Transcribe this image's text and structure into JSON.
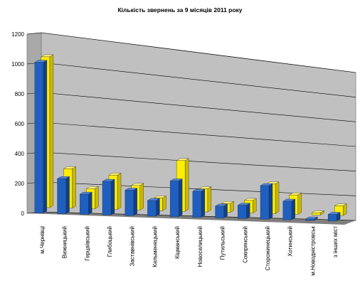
{
  "colors": {
    "plot_wall": "#c0c0c0",
    "floor": "#7f7f7f",
    "gridline": "#000000",
    "series_blue": "#1f5fbf",
    "series_blue_dark": "#0f3f8a",
    "series_blue_light": "#4a86e0",
    "series_yellow": "#ffee00",
    "series_yellow_dark": "#c9b800",
    "series_yellow_light": "#fff27a"
  },
  "chart_data": {
    "type": "bar",
    "title": "Кількість звернень за 9 місяців 2011 року",
    "xlabel": "",
    "ylabel": "",
    "ylim": [
      0,
      1200
    ],
    "yticks": [
      0,
      200,
      400,
      600,
      800,
      1000,
      1200
    ],
    "grid": true,
    "legend": "none",
    "style": "3d-clustered-bar",
    "categories": [
      "м.Чернівці",
      "Вижницький",
      "Герцаївський",
      "Глибоцький",
      "Заставнівський",
      "Кельменецький",
      "Кіцманський",
      "Новоселицький",
      "Путильський",
      "Сокирянський",
      "Сторожинецький",
      "Хотинський",
      "м.Новодністровськ",
      "з інших міст"
    ],
    "series": [
      {
        "values": [
          1010,
          235,
          135,
          225,
          170,
          105,
          240,
          175,
          80,
          90,
          225,
          125,
          10,
          45
        ]
      },
      {
        "values": [
          1010,
          265,
          135,
          230,
          165,
          85,
          340,
          155,
          60,
          85,
          200,
          130,
          15,
          65
        ]
      }
    ]
  }
}
